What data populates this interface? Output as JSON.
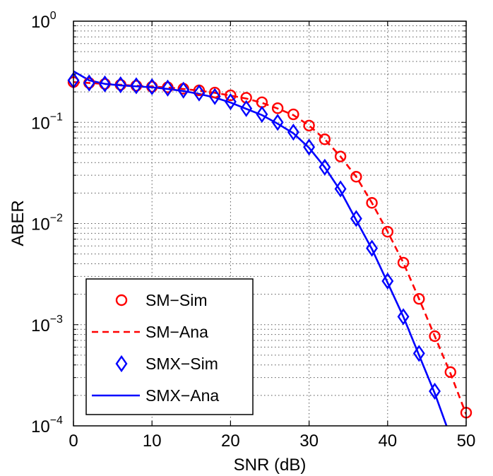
{
  "chart_data": {
    "type": "line",
    "xlabel": "SNR (dB)",
    "ylabel": "ABER",
    "xlim": [
      0,
      50
    ],
    "ylim": [
      0.0001,
      1
    ],
    "y_scale": "log",
    "grid": true,
    "x_ticks": [
      0,
      10,
      20,
      30,
      40,
      50
    ],
    "y_ticks": [
      {
        "value": 1,
        "base": "10",
        "exp": "0"
      },
      {
        "value": 0.1,
        "base": "10",
        "exp": "−1"
      },
      {
        "value": 0.01,
        "base": "10",
        "exp": "−2"
      },
      {
        "value": 0.001,
        "base": "10",
        "exp": "−3"
      },
      {
        "value": 0.0001,
        "base": "10",
        "exp": "−4"
      }
    ],
    "legend_position": "bottom-left",
    "series": [
      {
        "name": "SM−Sim",
        "style": "markers",
        "marker": "circle",
        "color": "#ff0000",
        "x": [
          0,
          2,
          4,
          6,
          8,
          10,
          12,
          14,
          16,
          18,
          20,
          22,
          24,
          26,
          28,
          30,
          32,
          34,
          36,
          38,
          40,
          42,
          44,
          46,
          48,
          50
        ],
        "y": [
          0.25,
          0.245,
          0.24,
          0.235,
          0.23,
          0.225,
          0.222,
          0.215,
          0.207,
          0.197,
          0.185,
          0.175,
          0.158,
          0.138,
          0.12,
          0.093,
          0.068,
          0.046,
          0.029,
          0.016,
          0.0083,
          0.0041,
          0.0018,
          0.00077,
          0.00034,
          0.000135
        ]
      },
      {
        "name": "SM−Ana",
        "style": "dashed",
        "color": "#ff0000",
        "x": [
          0,
          2,
          4,
          6,
          8,
          10,
          12,
          14,
          16,
          18,
          20,
          22,
          24,
          26,
          28,
          30,
          32,
          34,
          36,
          38,
          40,
          42,
          44,
          46,
          48,
          50
        ],
        "y": [
          0.25,
          0.245,
          0.24,
          0.235,
          0.23,
          0.226,
          0.221,
          0.214,
          0.206,
          0.196,
          0.184,
          0.172,
          0.156,
          0.137,
          0.118,
          0.093,
          0.068,
          0.046,
          0.029,
          0.016,
          0.0083,
          0.0041,
          0.0018,
          0.00077,
          0.00033,
          0.00013
        ]
      },
      {
        "name": "SMX−Sim",
        "style": "markers",
        "marker": "diamond",
        "color": "#0000ff",
        "x": [
          0,
          2,
          4,
          6,
          8,
          10,
          12,
          14,
          16,
          18,
          20,
          22,
          24,
          26,
          28,
          30,
          32,
          34,
          36,
          38,
          40,
          42,
          44,
          46
        ],
        "y": [
          0.26,
          0.245,
          0.24,
          0.235,
          0.23,
          0.225,
          0.218,
          0.208,
          0.195,
          0.18,
          0.16,
          0.137,
          0.12,
          0.1,
          0.08,
          0.057,
          0.036,
          0.022,
          0.0112,
          0.0057,
          0.0027,
          0.0012,
          0.00052,
          0.00022
        ]
      },
      {
        "name": "SMX−Ana",
        "style": "solid",
        "color": "#0000ff",
        "x": [
          0,
          2,
          4,
          6,
          8,
          10,
          12,
          14,
          16,
          18,
          20,
          22,
          24,
          26,
          28,
          30,
          32,
          34,
          36,
          38,
          40,
          42,
          44,
          46,
          47.5
        ],
        "y": [
          0.32,
          0.26,
          0.24,
          0.232,
          0.227,
          0.222,
          0.214,
          0.204,
          0.191,
          0.176,
          0.157,
          0.136,
          0.118,
          0.097,
          0.078,
          0.056,
          0.036,
          0.021,
          0.0108,
          0.0056,
          0.0026,
          0.0012,
          0.0005,
          0.00021,
          0.0001
        ]
      }
    ]
  }
}
